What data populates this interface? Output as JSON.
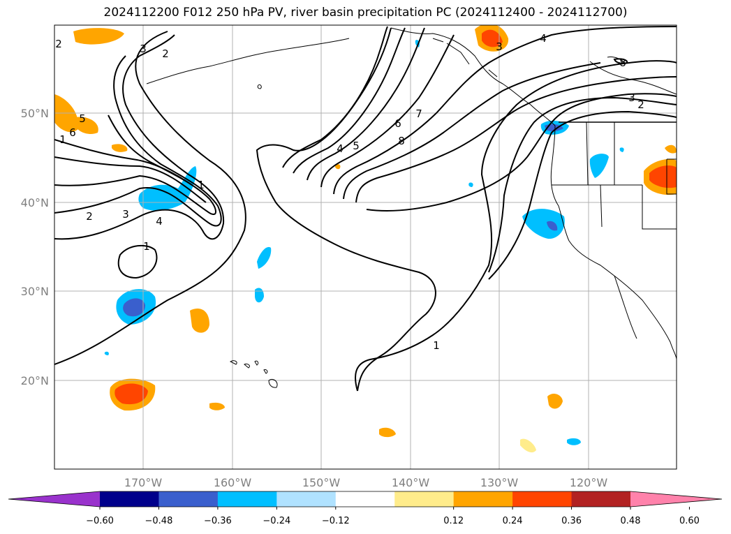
{
  "title": "2024112200 F012 250 hPa PV, river basin precipitation PC (2024112400 - 2024112700)",
  "map": {
    "lat_labels": [
      "50°N",
      "40°N",
      "30°N",
      "20°N"
    ],
    "lon_labels": [
      "170°W",
      "160°W",
      "150°W",
      "140°W",
      "130°W",
      "120°W"
    ],
    "contour_labels": [
      "2",
      "3",
      "2",
      "3",
      "4",
      "8",
      "3",
      "2",
      "5",
      "6",
      "1",
      "2",
      "3",
      "4",
      "1",
      "1",
      "4",
      "5",
      "6",
      "7",
      "8",
      "1"
    ]
  },
  "colorbar": {
    "ticks": [
      "−0.60",
      "−0.48",
      "−0.36",
      "−0.24",
      "−0.12",
      "0.12",
      "0.24",
      "0.36",
      "0.48",
      "0.60"
    ],
    "colors": [
      "#9932cc",
      "#00008b",
      "#3a5fcd",
      "#00bfff",
      "#b0e2ff",
      "#ffffff",
      "#ffec8b",
      "#ffa500",
      "#ff4500",
      "#b22222",
      "#ff82ab"
    ]
  }
}
